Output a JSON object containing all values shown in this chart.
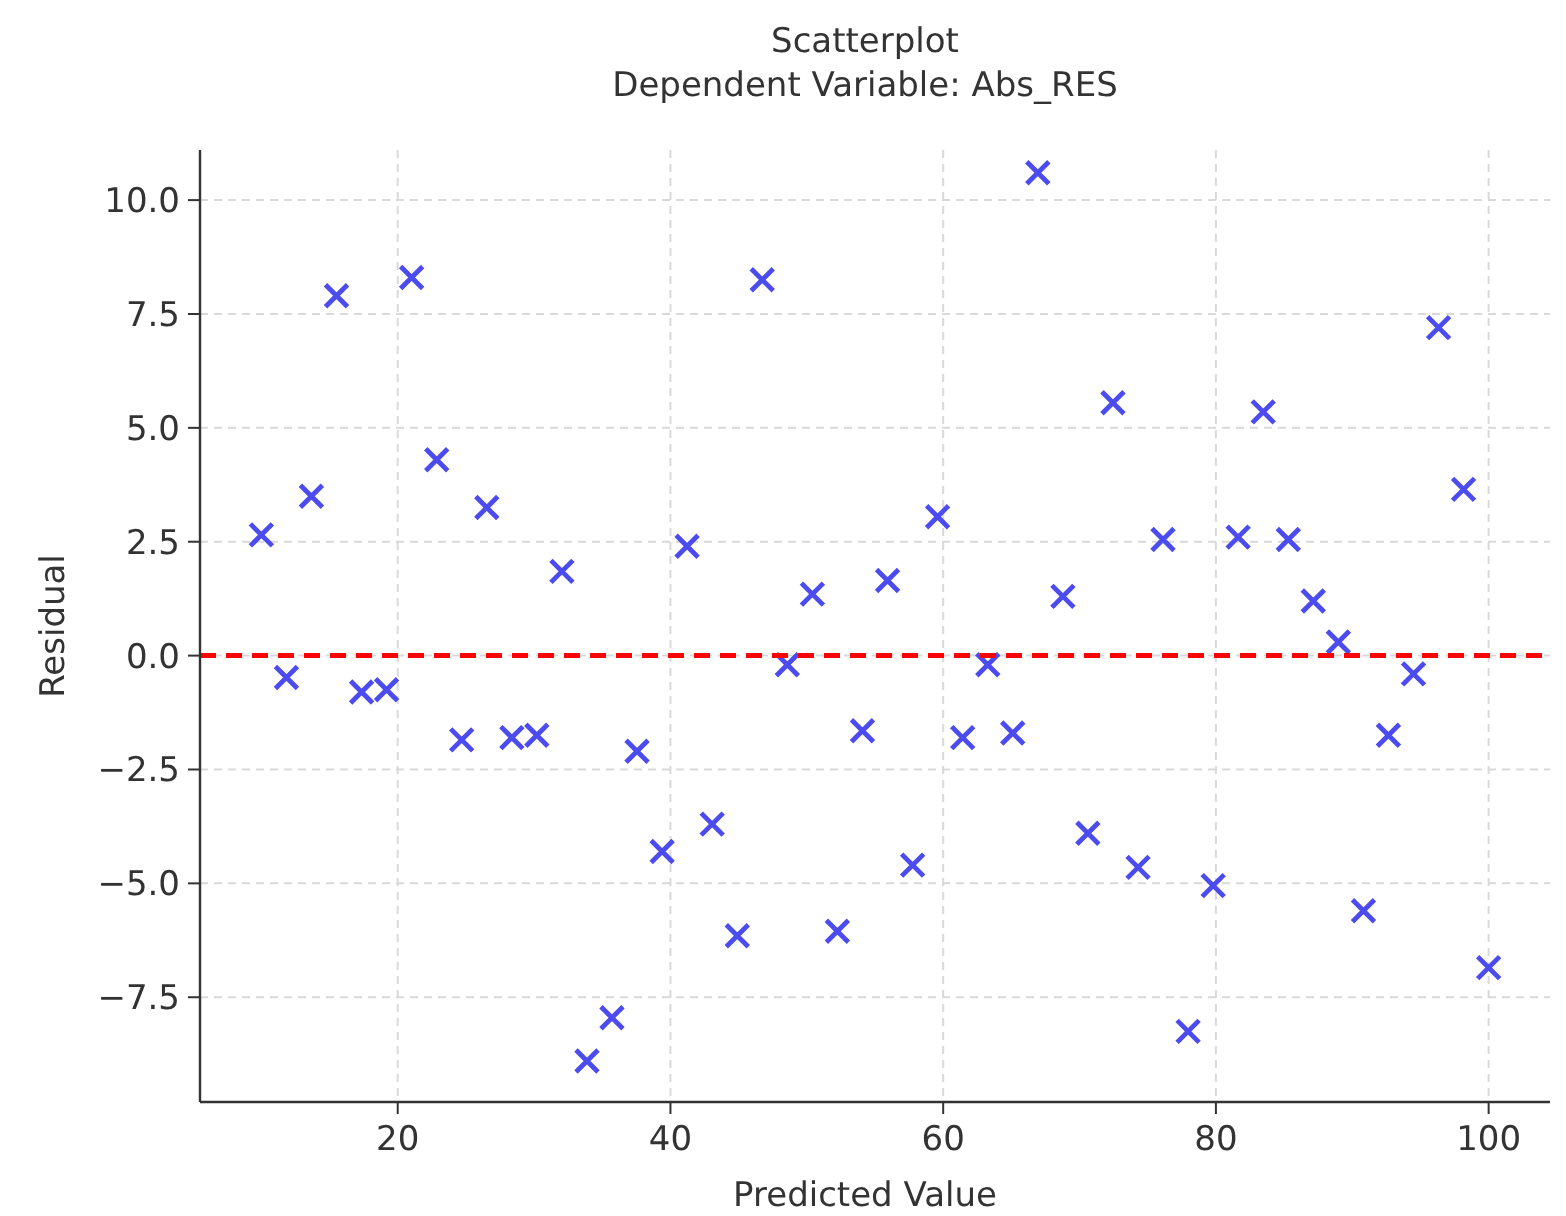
{
  "chart_data": {
    "type": "scatter",
    "title": "Scatterplot",
    "subtitle": "Dependent Variable: Abs_RES",
    "xlabel": "Predicted Value",
    "ylabel": "Residual",
    "x": [
      10,
      11.84,
      13.67,
      15.51,
      17.35,
      19.18,
      21.02,
      22.86,
      24.69,
      26.53,
      28.37,
      30.2,
      32.04,
      33.88,
      35.71,
      37.55,
      39.39,
      41.22,
      43.06,
      44.9,
      46.73,
      48.57,
      50.41,
      52.24,
      54.08,
      55.92,
      57.76,
      59.59,
      61.43,
      63.27,
      65.1,
      66.94,
      68.78,
      70.61,
      72.45,
      74.29,
      76.12,
      77.96,
      79.8,
      81.63,
      83.47,
      85.31,
      87.14,
      88.98,
      90.82,
      92.65,
      94.49,
      96.33,
      98.16,
      100
    ],
    "series": [
      {
        "color": "#4b4bf0",
        "values": [
          2.65,
          -0.48,
          3.5,
          7.9,
          -0.8,
          -0.75,
          8.3,
          4.3,
          -1.85,
          3.25,
          -1.8,
          -1.75,
          1.85,
          -8.9,
          -7.95,
          -2.1,
          -4.3,
          2.4,
          -3.7,
          -6.15,
          8.25,
          -0.2,
          1.35,
          -6.05,
          -1.65,
          1.65,
          -4.6,
          3.05,
          -1.8,
          -0.2,
          -1.7,
          10.6,
          1.3,
          -3.9,
          5.55,
          -4.65,
          2.55,
          -8.25,
          -5.05,
          2.6,
          5.35,
          2.55,
          1.2,
          0.3,
          -5.6,
          -1.75,
          -0.4,
          7.2,
          3.65,
          -6.85
        ]
      }
    ],
    "marker": "cross",
    "grid": true,
    "xlim": [
      5.5,
      104.5
    ],
    "xticks": [
      20,
      40,
      60,
      80,
      100
    ],
    "ylim": [
      -9.8,
      11.1
    ],
    "yticks": [
      {
        "value": -7.5,
        "label": "−7.5"
      },
      {
        "value": -5,
        "label": "−5.0"
      },
      {
        "value": -2.5,
        "label": "−2.5"
      },
      {
        "value": 0,
        "label": "0.0"
      },
      {
        "value": 2.5,
        "label": "2.5"
      },
      {
        "value": 5,
        "label": "5.0"
      },
      {
        "value": 7.5,
        "label": "7.5"
      },
      {
        "value": 10,
        "label": "10.0"
      }
    ],
    "ref_lines": [
      {
        "axis": "y",
        "value": 0,
        "color": "#ff0000",
        "line_style": "dashed"
      }
    ]
  }
}
